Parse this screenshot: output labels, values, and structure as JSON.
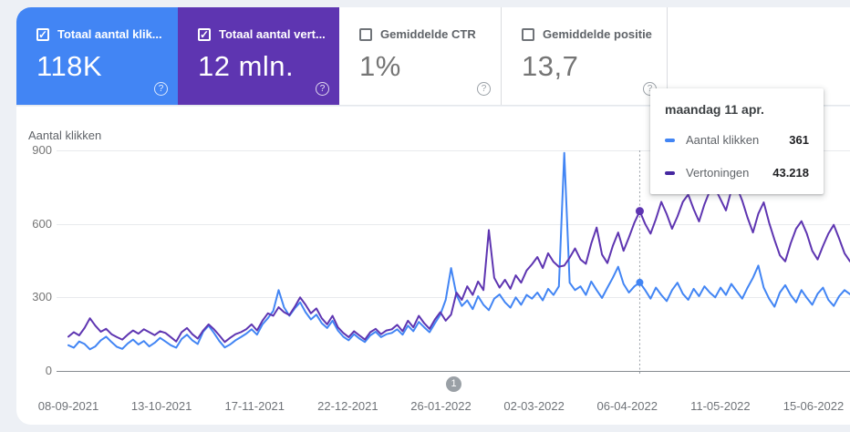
{
  "cards": [
    {
      "label": "Totaal aantal klik...",
      "value": "118K",
      "checked": true,
      "color": "#4285f4"
    },
    {
      "label": "Totaal aantal vert...",
      "value": "12 mln.",
      "checked": true,
      "color": "#5e35b1"
    },
    {
      "label": "Gemiddelde CTR",
      "value": "1%",
      "checked": false,
      "color": ""
    },
    {
      "label": "Gemiddelde positie",
      "value": "13,7",
      "checked": false,
      "color": ""
    }
  ],
  "tooltip": {
    "title": "maandag 11 apr.",
    "rows": [
      {
        "label": "Aantal klikken",
        "value": "361",
        "color": "#4285f4"
      },
      {
        "label": "Vertoningen",
        "value": "43.218",
        "color": "#4527a0"
      }
    ]
  },
  "pagination": {
    "label": "1"
  },
  "chart_data": {
    "type": "line",
    "title": "",
    "ylabel": "Aantal klikken",
    "xlabel": "",
    "ylim": [
      0,
      900
    ],
    "y_ticks": [
      0,
      300,
      600,
      900
    ],
    "grid": true,
    "legend_position": "tooltip-only",
    "x_ticks": [
      "08-09-2021",
      "13-10-2021",
      "17-11-2021",
      "22-12-2021",
      "26-01-2022",
      "02-03-2022",
      "06-04-2022",
      "11-05-2022",
      "15-06-2022"
    ],
    "x_note": "daily values, 08-09-2021 through late 06-2022, sampled every 2 days",
    "hover_index": 106,
    "hover": {
      "date": "maandag 11 apr.",
      "aantal_klikken": 361,
      "vertoningen": 43218
    },
    "series": [
      {
        "name": "Aantal klikken",
        "color": "#4285f4",
        "axis": "left",
        "values": [
          105,
          95,
          120,
          110,
          88,
          100,
          125,
          140,
          118,
          98,
          90,
          112,
          128,
          108,
          122,
          100,
          115,
          135,
          120,
          105,
          95,
          130,
          148,
          125,
          110,
          160,
          185,
          155,
          122,
          96,
          108,
          125,
          138,
          152,
          170,
          148,
          190,
          215,
          245,
          330,
          260,
          225,
          255,
          280,
          240,
          210,
          230,
          195,
          175,
          205,
          165,
          140,
          125,
          150,
          132,
          118,
          145,
          160,
          138,
          150,
          155,
          170,
          148,
          185,
          162,
          200,
          178,
          158,
          195,
          230,
          290,
          420,
          310,
          265,
          288,
          252,
          305,
          270,
          248,
          295,
          312,
          280,
          258,
          300,
          270,
          310,
          295,
          320,
          288,
          335,
          310,
          345,
          890,
          360,
          330,
          345,
          310,
          365,
          330,
          298,
          340,
          380,
          425,
          355,
          320,
          345,
          361,
          330,
          295,
          340,
          310,
          285,
          330,
          360,
          315,
          290,
          335,
          305,
          345,
          320,
          300,
          340,
          310,
          355,
          325,
          295,
          340,
          380,
          430,
          340,
          295,
          262,
          320,
          350,
          310,
          280,
          330,
          298,
          270,
          315,
          340,
          290,
          265,
          305,
          330,
          313
        ]
      },
      {
        "name": "Vertoningen",
        "color": "#5e35b1",
        "axis": "hidden (impressions, plotted in left-axis visual units)",
        "values": [
          140,
          158,
          145,
          175,
          215,
          185,
          160,
          172,
          150,
          138,
          128,
          148,
          165,
          152,
          170,
          158,
          146,
          162,
          155,
          138,
          120,
          158,
          175,
          150,
          132,
          165,
          190,
          170,
          145,
          118,
          135,
          150,
          158,
          170,
          190,
          165,
          205,
          235,
          225,
          260,
          240,
          228,
          262,
          300,
          270,
          235,
          255,
          215,
          190,
          225,
          178,
          155,
          138,
          162,
          145,
          128,
          158,
          172,
          150,
          165,
          170,
          188,
          162,
          205,
          178,
          225,
          195,
          172,
          210,
          240,
          205,
          230,
          320,
          290,
          345,
          310,
          365,
          330,
          575,
          380,
          340,
          372,
          335,
          390,
          360,
          410,
          435,
          465,
          420,
          480,
          445,
          425,
          430,
          462,
          500,
          455,
          437,
          520,
          585,
          475,
          440,
          510,
          565,
          490,
          545,
          605,
          652,
          600,
          560,
          620,
          690,
          640,
          580,
          630,
          690,
          720,
          660,
          610,
          680,
          735,
          745,
          700,
          655,
          738,
          752,
          695,
          625,
          565,
          642,
          688,
          605,
          535,
          472,
          447,
          520,
          580,
          611,
          560,
          490,
          455,
          510,
          560,
          596,
          540,
          480,
          447
        ]
      }
    ]
  }
}
